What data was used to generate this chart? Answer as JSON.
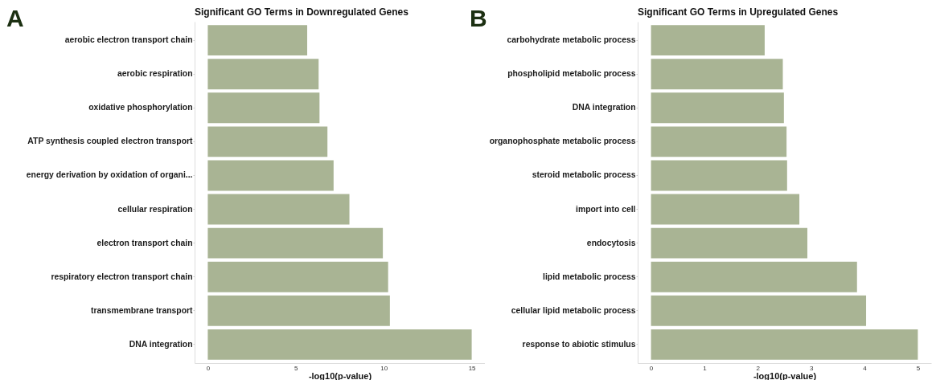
{
  "chart_data": [
    {
      "type": "bar",
      "orientation": "horizontal",
      "title": "Significant GO Terms in Downregulated Genes",
      "xlabel": "-log10(p-value)",
      "categories": [
        "aerobic electron transport chain",
        "aerobic respiration",
        "oxidative phosphorylation",
        "ATP synthesis coupled electron transport",
        "energy derivation by oxidation of organi...",
        "cellular respiration",
        "electron transport chain",
        "respiratory electron transport chain",
        "transmembrane transport",
        "DNA integration"
      ],
      "values": [
        5.65,
        6.3,
        6.35,
        6.8,
        7.15,
        8.05,
        9.95,
        10.25,
        10.35,
        15
      ],
      "color": "#a9b494",
      "xlim": [
        -0.75,
        15.75
      ],
      "xticks": [
        0,
        5,
        10,
        15
      ],
      "annotations": [
        "A"
      ]
    },
    {
      "type": "bar",
      "orientation": "horizontal",
      "title": "Significant GO Terms in Upregulated Genes",
      "xlabel": "-log10(p-value)",
      "categories": [
        "carbohydrate metabolic process",
        "phospholipid metabolic process",
        "DNA integration",
        "organophosphate metabolic process",
        "steroid metabolic process",
        "import into cell",
        "endocytosis",
        "lipid metabolic process",
        "cellular lipid metabolic process",
        "response to abiotic stimulus"
      ],
      "values": [
        2.13,
        2.47,
        2.49,
        2.54,
        2.55,
        2.78,
        2.93,
        3.86,
        4.03,
        5
      ],
      "color": "#a9b494",
      "xlim": [
        -0.25,
        5.25
      ],
      "xticks": [
        0,
        1,
        2,
        3,
        4,
        5
      ],
      "annotations": [
        "B"
      ]
    }
  ]
}
